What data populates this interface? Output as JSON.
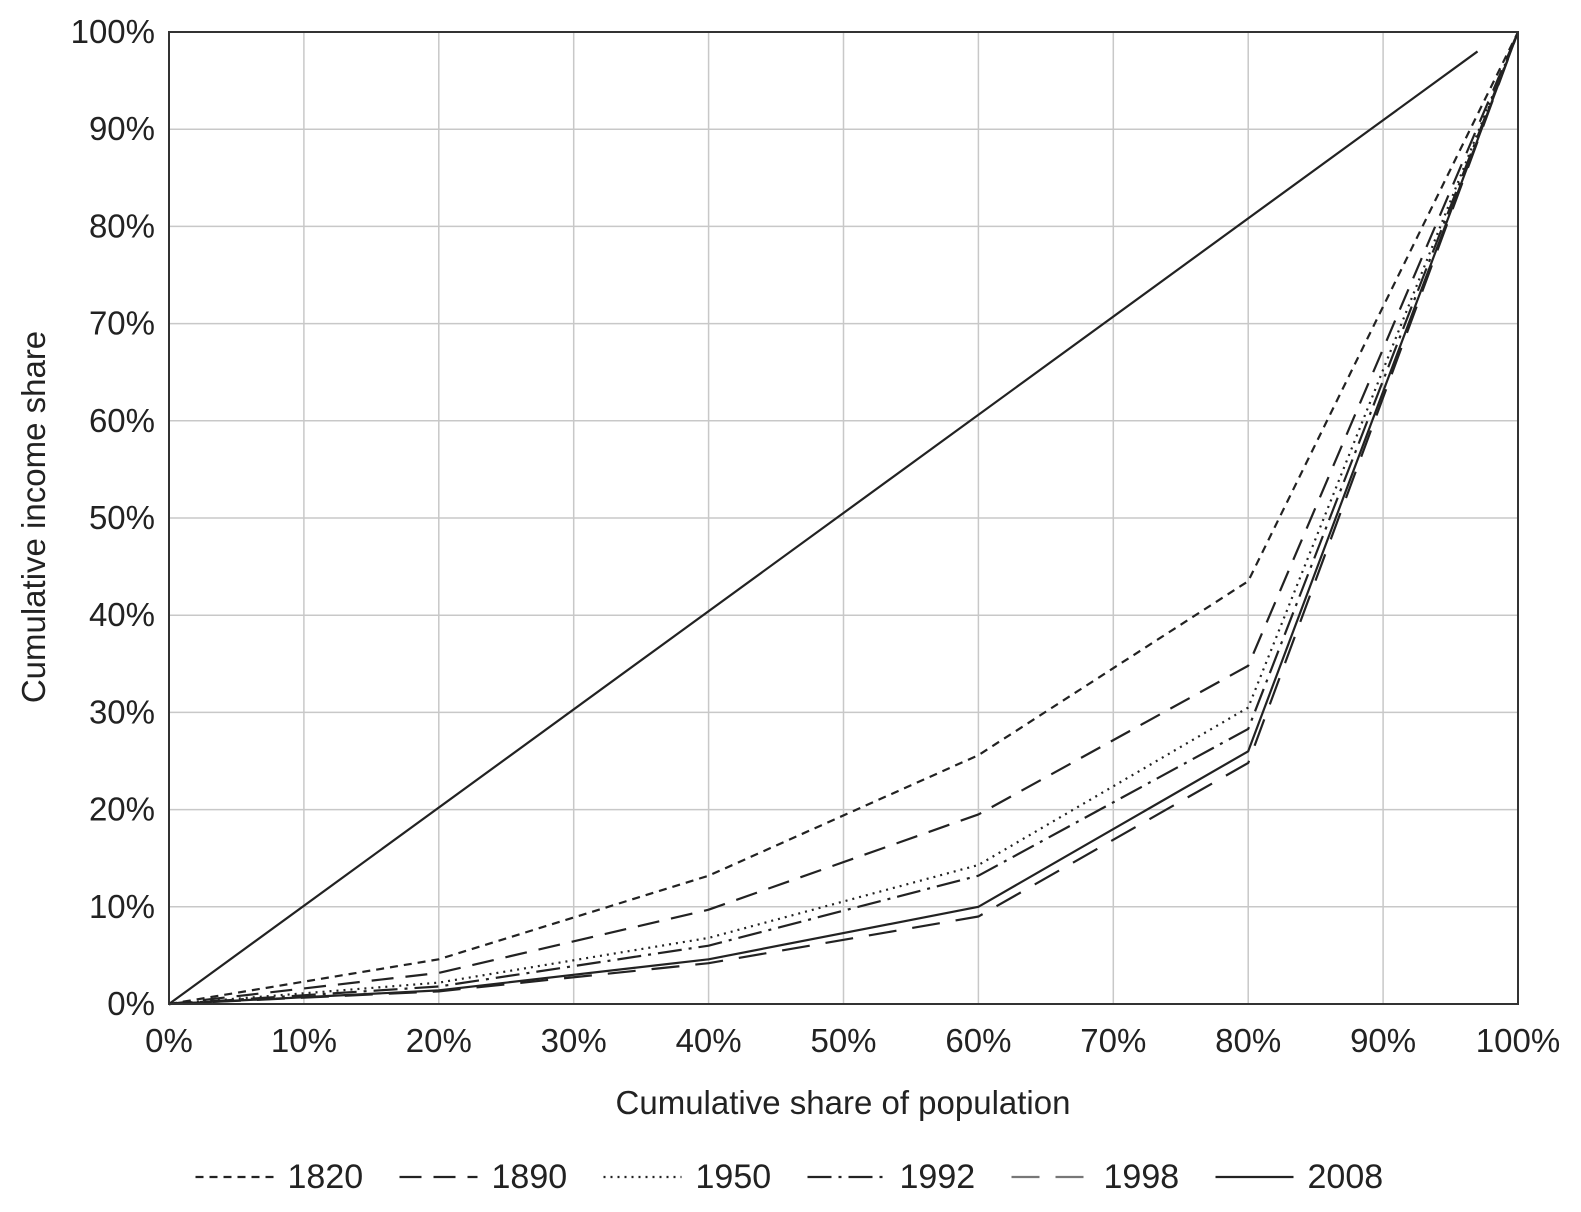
{
  "chart_data": {
    "type": "line",
    "title": "",
    "xlabel": "Cumulative share of population",
    "ylabel": "Cumulative income share",
    "xlim": [
      0,
      100
    ],
    "ylim": [
      0,
      100
    ],
    "x_ticks": [
      "0%",
      "10%",
      "20%",
      "30%",
      "40%",
      "50%",
      "60%",
      "70%",
      "80%",
      "90%",
      "100%"
    ],
    "y_ticks": [
      "0%",
      "10%",
      "20%",
      "30%",
      "40%",
      "50%",
      "60%",
      "70%",
      "80%",
      "90%",
      "100%"
    ],
    "grid": true,
    "legend_position": "bottom",
    "equality_line": {
      "x": [
        0,
        97
      ],
      "y": [
        0,
        98
      ]
    },
    "series": [
      {
        "name": "1820",
        "dash": "8,6",
        "color": "#222222",
        "x": [
          0,
          20,
          40,
          60,
          80,
          100
        ],
        "y": [
          0,
          4.6,
          13.2,
          25.6,
          43.5,
          100
        ]
      },
      {
        "name": "1890",
        "dash": "22,12",
        "color": "#222222",
        "x": [
          0,
          20,
          40,
          60,
          80,
          100
        ],
        "y": [
          0,
          3.2,
          9.7,
          19.5,
          34.8,
          100
        ]
      },
      {
        "name": "1950",
        "dash": "2,5",
        "color": "#222222",
        "x": [
          0,
          20,
          40,
          60,
          80,
          100
        ],
        "y": [
          0,
          2.2,
          6.8,
          14.3,
          30.5,
          100
        ]
      },
      {
        "name": "1992",
        "dash": "24,7,3,7",
        "color": "#222222",
        "x": [
          0,
          20,
          40,
          60,
          80,
          100
        ],
        "y": [
          0,
          1.8,
          6.0,
          13.2,
          28.3,
          100
        ]
      },
      {
        "name": "1998",
        "dash": "28,16",
        "color": "#777777",
        "x": [
          0,
          20,
          40,
          60,
          80,
          100
        ],
        "y": [
          0,
          1.3,
          4.2,
          9.0,
          24.8,
          100
        ]
      },
      {
        "name": "2008",
        "dash": "",
        "color": "#222222",
        "x": [
          0,
          20,
          40,
          60,
          80,
          100
        ],
        "y": [
          0,
          1.4,
          4.6,
          10.0,
          26.0,
          100
        ]
      }
    ]
  }
}
